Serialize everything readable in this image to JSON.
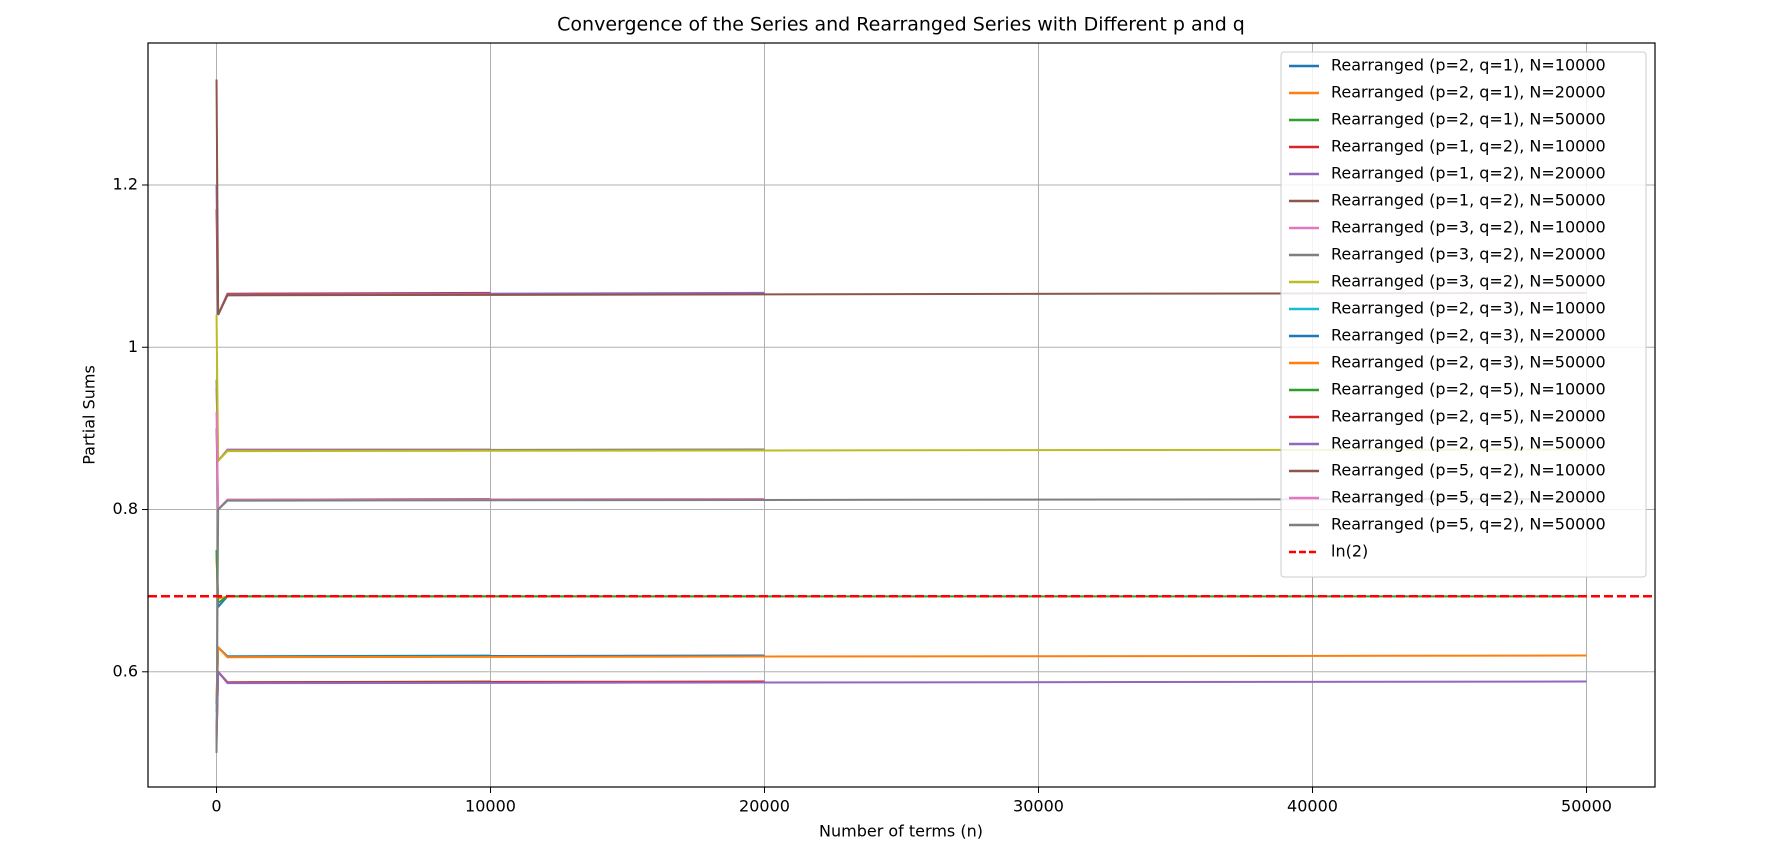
{
  "chart_data": {
    "type": "line",
    "title": "Convergence of the Series and Rearranged Series with Different p and q",
    "xlabel": "Number of terms (n)",
    "ylabel": "Partial Sums",
    "xlim": [
      -2500,
      52500
    ],
    "ylim": [
      0.458,
      1.375
    ],
    "xticks": [
      0,
      10000,
      20000,
      30000,
      40000,
      50000
    ],
    "yticks": [
      0.6,
      0.8,
      1.0,
      1.2
    ],
    "grid": true,
    "legend": "upper right",
    "series": [
      {
        "name": "Rearranged (p=2, q=1), N=10000",
        "color": "#1f77b4",
        "x": [
          1,
          60,
          400,
          10000
        ],
        "values": [
          0.75,
          0.68,
          0.693,
          0.693
        ]
      },
      {
        "name": "Rearranged (p=2, q=1), N=20000",
        "color": "#ff7f0e",
        "x": [
          1,
          60,
          400,
          20000
        ],
        "values": [
          0.74,
          0.69,
          0.693,
          0.693
        ]
      },
      {
        "name": "Rearranged (p=2, q=1), N=50000",
        "color": "#2ca02c",
        "x": [
          1,
          60,
          400,
          50000
        ],
        "values": [
          0.75,
          0.685,
          0.693,
          0.693
        ]
      },
      {
        "name": "Rearranged (p=1, q=2), N=10000",
        "color": "#d62728",
        "x": [
          1,
          60,
          400,
          10000
        ],
        "values": [
          1.17,
          1.04,
          1.066,
          1.067
        ]
      },
      {
        "name": "Rearranged (p=1, q=2), N=20000",
        "color": "#9467bd",
        "x": [
          1,
          60,
          400,
          20000
        ],
        "values": [
          1.2,
          1.04,
          1.065,
          1.067
        ]
      },
      {
        "name": "Rearranged (p=1, q=2), N=50000",
        "color": "#8c564b",
        "x": [
          1,
          60,
          400,
          50000
        ],
        "values": [
          1.33,
          1.04,
          1.064,
          1.067
        ]
      },
      {
        "name": "Rearranged (p=3, q=2), N=10000",
        "color": "#e377c2",
        "x": [
          1,
          60,
          400,
          10000
        ],
        "values": [
          0.95,
          0.86,
          0.874,
          0.874
        ]
      },
      {
        "name": "Rearranged (p=3, q=2), N=20000",
        "color": "#7f7f7f",
        "x": [
          1,
          60,
          400,
          20000
        ],
        "values": [
          0.96,
          0.86,
          0.873,
          0.874
        ]
      },
      {
        "name": "Rearranged (p=3, q=2), N=50000",
        "color": "#bcbd22",
        "x": [
          1,
          60,
          400,
          50000
        ],
        "values": [
          1.04,
          0.86,
          0.872,
          0.874
        ]
      },
      {
        "name": "Rearranged (p=2, q=3), N=10000",
        "color": "#17becf",
        "x": [
          1,
          60,
          400,
          10000
        ],
        "values": [
          0.55,
          0.63,
          0.619,
          0.62
        ]
      },
      {
        "name": "Rearranged (p=2, q=3), N=20000",
        "color": "#1f77b4",
        "x": [
          1,
          60,
          400,
          20000
        ],
        "values": [
          0.56,
          0.63,
          0.619,
          0.62
        ]
      },
      {
        "name": "Rearranged (p=2, q=3), N=50000",
        "color": "#ff7f0e",
        "x": [
          1,
          60,
          400,
          50000
        ],
        "values": [
          0.57,
          0.63,
          0.618,
          0.62
        ]
      },
      {
        "name": "Rearranged (p=2, q=5), N=10000",
        "color": "#2ca02c",
        "x": [
          1,
          60,
          400,
          10000
        ],
        "values": [
          0.53,
          0.6,
          0.587,
          0.588
        ]
      },
      {
        "name": "Rearranged (p=2, q=5), N=20000",
        "color": "#d62728",
        "x": [
          1,
          60,
          400,
          20000
        ],
        "values": [
          0.52,
          0.6,
          0.587,
          0.588
        ]
      },
      {
        "name": "Rearranged (p=2, q=5), N=50000",
        "color": "#9467bd",
        "x": [
          1,
          60,
          400,
          50000
        ],
        "values": [
          0.51,
          0.6,
          0.586,
          0.588
        ]
      },
      {
        "name": "Rearranged (p=5, q=2), N=10000",
        "color": "#8c564b",
        "x": [
          1,
          60,
          400,
          10000
        ],
        "values": [
          0.9,
          0.8,
          0.812,
          0.813
        ]
      },
      {
        "name": "Rearranged (p=5, q=2), N=20000",
        "color": "#e377c2",
        "x": [
          1,
          60,
          400,
          20000
        ],
        "values": [
          0.92,
          0.8,
          0.812,
          0.813
        ]
      },
      {
        "name": "Rearranged (p=5, q=2), N=50000",
        "color": "#7f7f7f",
        "x": [
          1,
          60,
          400,
          50000
        ],
        "values": [
          0.5,
          0.8,
          0.811,
          0.813
        ]
      }
    ],
    "hlines": [
      {
        "name": "ln(2)",
        "color": "#ff0000",
        "y": 0.6931,
        "dashed": true
      }
    ]
  }
}
